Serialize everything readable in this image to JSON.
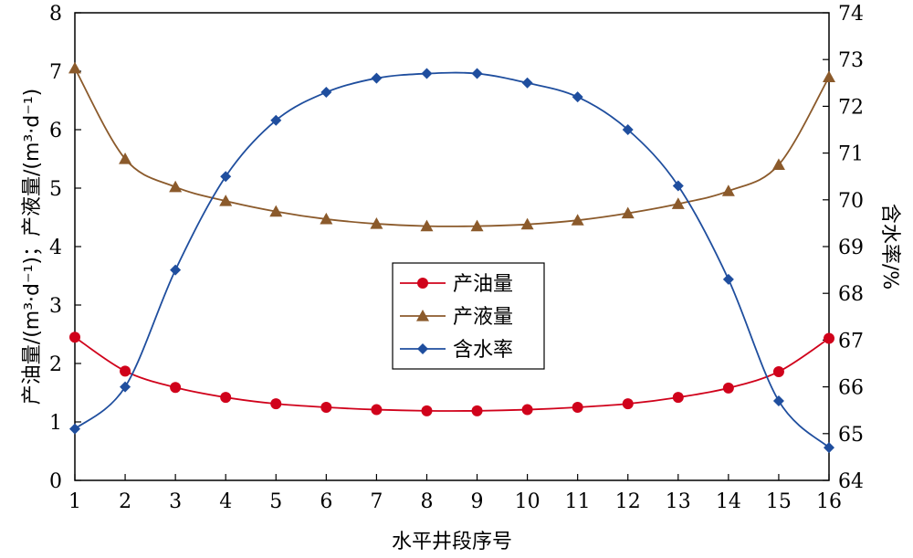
{
  "chart_data": {
    "type": "line",
    "x": [
      1,
      2,
      3,
      4,
      5,
      6,
      7,
      8,
      9,
      10,
      11,
      12,
      13,
      14,
      15,
      16
    ],
    "xlabel": "水平井段序号",
    "ylabel_left": "产油量/(m³·d⁻¹)；产液量/(m³·d⁻¹)",
    "ylabel_right": "含水率/%",
    "xlim": [
      1,
      16
    ],
    "ylim_left": [
      0,
      8
    ],
    "ylim_right": [
      64,
      74
    ],
    "xticks": [
      "1",
      "2",
      "3",
      "4",
      "5",
      "6",
      "7",
      "8",
      "9",
      "10",
      "11",
      "12",
      "13",
      "14",
      "15",
      "16"
    ],
    "yticks_left": [
      "0",
      "1",
      "2",
      "3",
      "4",
      "5",
      "6",
      "7",
      "8"
    ],
    "yticks_right": [
      "64",
      "65",
      "66",
      "67",
      "68",
      "69",
      "70",
      "71",
      "72",
      "73",
      "74"
    ],
    "grid": false,
    "legend": "center",
    "series": [
      {
        "name": "产油量",
        "axis": "left",
        "color": "#d0021b",
        "marker": "circle",
        "values": [
          2.45,
          1.87,
          1.59,
          1.42,
          1.31,
          1.25,
          1.21,
          1.19,
          1.19,
          1.21,
          1.25,
          1.31,
          1.42,
          1.58,
          1.86,
          2.43
        ]
      },
      {
        "name": "产液量",
        "axis": "left",
        "color": "#8b5a2b",
        "marker": "triangle",
        "values": [
          7.05,
          5.5,
          5.02,
          4.78,
          4.6,
          4.47,
          4.39,
          4.35,
          4.35,
          4.38,
          4.45,
          4.57,
          4.73,
          4.95,
          5.4,
          6.9
        ]
      },
      {
        "name": "含水率",
        "axis": "right",
        "color": "#1f4e9e",
        "marker": "diamond",
        "values": [
          65.1,
          66.0,
          68.5,
          70.5,
          71.7,
          72.3,
          72.6,
          72.7,
          72.7,
          72.5,
          72.2,
          71.5,
          70.3,
          68.3,
          65.7,
          64.7
        ]
      }
    ]
  }
}
